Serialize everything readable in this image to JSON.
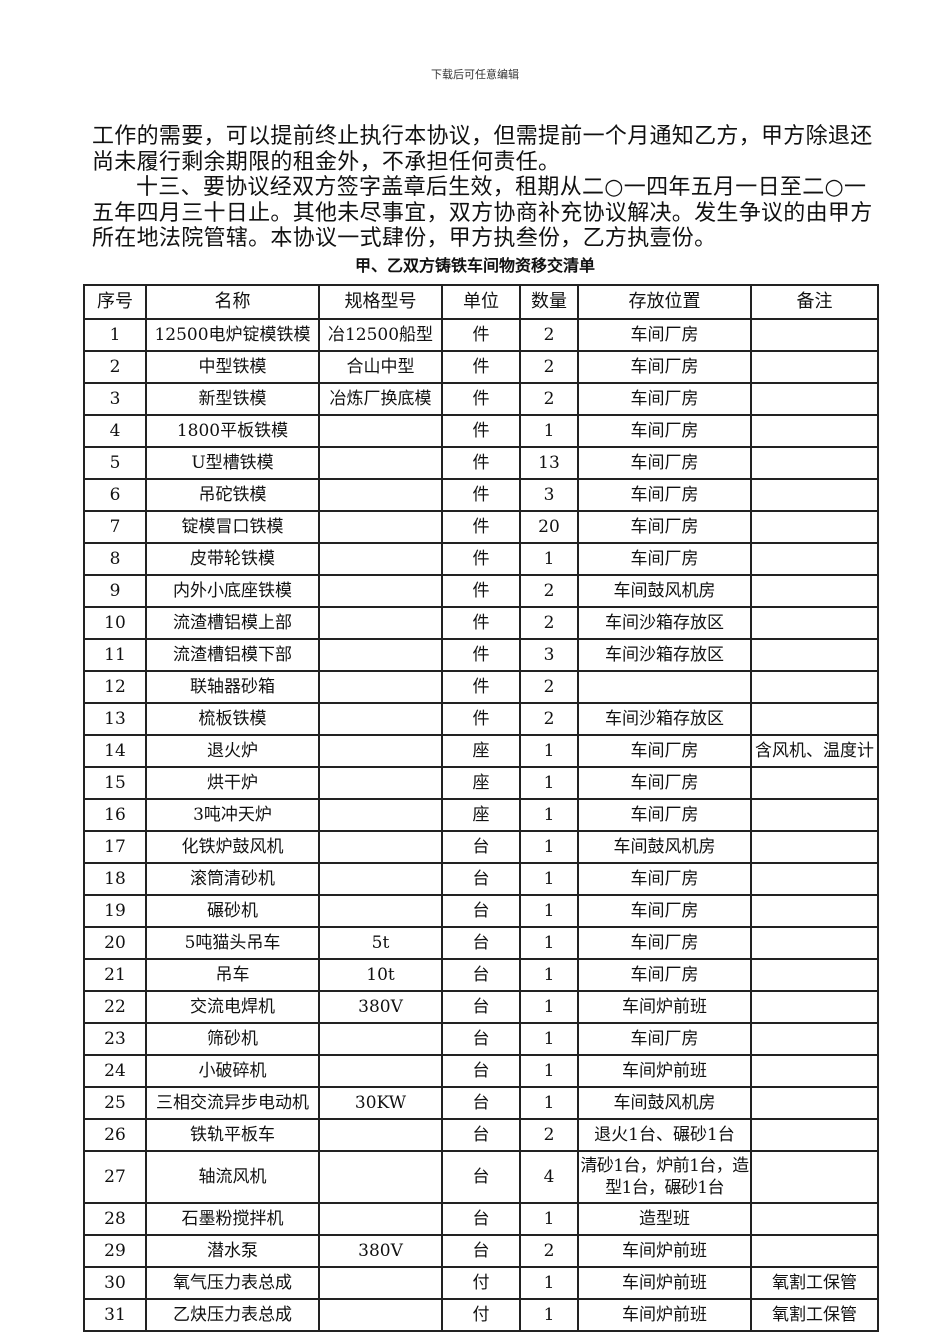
{
  "watermark": "下载后可任意编辑",
  "paragraphs": [
    "工作的需要，可以提前终止执行本协议，但需提前一个月通知乙方，甲方除退还尚未履行剩余期限的租金外，不承担任何责任。",
    "十三、要协议经双方签字盖章后生效，租期从二○一四年五月一日至二○一五年四月三十日止。其他未尽事宜，双方协商补充协议解决。发生争议的由甲方所在地法院管辖。本协议一式肆份，甲方执叁份，乙方执壹份。"
  ],
  "table_title": "甲、乙双方铸铁车间物资移交清单",
  "columns": [
    "序号",
    "名称",
    "规格型号",
    "单位",
    "数量",
    "存放位置",
    "备注"
  ],
  "rows": [
    [
      "1",
      "12500电炉锭模铁模",
      "冶12500船型",
      "件",
      "2",
      "车间厂房",
      ""
    ],
    [
      "2",
      "中型铁模",
      "合山中型",
      "件",
      "2",
      "车间厂房",
      ""
    ],
    [
      "3",
      "新型铁模",
      "冶炼厂换底模",
      "件",
      "2",
      "车间厂房",
      ""
    ],
    [
      "4",
      "1800平板铁模",
      "",
      "件",
      "1",
      "车间厂房",
      ""
    ],
    [
      "5",
      "U型槽铁模",
      "",
      "件",
      "13",
      "车间厂房",
      ""
    ],
    [
      "6",
      "吊砣铁模",
      "",
      "件",
      "3",
      "车间厂房",
      ""
    ],
    [
      "7",
      "锭模冒口铁模",
      "",
      "件",
      "20",
      "车间厂房",
      ""
    ],
    [
      "8",
      "皮带轮铁模",
      "",
      "件",
      "1",
      "车间厂房",
      ""
    ],
    [
      "9",
      "内外小底座铁模",
      "",
      "件",
      "2",
      "车间鼓风机房",
      ""
    ],
    [
      "10",
      "流渣槽铝模上部",
      "",
      "件",
      "2",
      "车间沙箱存放区",
      ""
    ],
    [
      "11",
      "流渣槽铝模下部",
      "",
      "件",
      "3",
      "车间沙箱存放区",
      ""
    ],
    [
      "12",
      "联轴器砂箱",
      "",
      "件",
      "2",
      "",
      ""
    ],
    [
      "13",
      "梳板铁模",
      "",
      "件",
      "2",
      "车间沙箱存放区",
      ""
    ],
    [
      "14",
      "退火炉",
      "",
      "座",
      "1",
      "车间厂房",
      "含风机、温度计"
    ],
    [
      "15",
      "烘干炉",
      "",
      "座",
      "1",
      "车间厂房",
      ""
    ],
    [
      "16",
      "3吨冲天炉",
      "",
      "座",
      "1",
      "车间厂房",
      ""
    ],
    [
      "17",
      "化铁炉鼓风机",
      "",
      "台",
      "1",
      "车间鼓风机房",
      ""
    ],
    [
      "18",
      "滚筒清砂机",
      "",
      "台",
      "1",
      "车间厂房",
      ""
    ],
    [
      "19",
      "碾砂机",
      "",
      "台",
      "1",
      "车间厂房",
      ""
    ],
    [
      "20",
      "5吨猫头吊车",
      "5t",
      "台",
      "1",
      "车间厂房",
      ""
    ],
    [
      "21",
      "吊车",
      "10t",
      "台",
      "1",
      "车间厂房",
      ""
    ],
    [
      "22",
      "交流电焊机",
      "380V",
      "台",
      "1",
      "车间炉前班",
      ""
    ],
    [
      "23",
      "筛砂机",
      "",
      "台",
      "1",
      "车间厂房",
      ""
    ],
    [
      "24",
      "小破碎机",
      "",
      "台",
      "1",
      "车间炉前班",
      ""
    ],
    [
      "25",
      "三相交流异步电动机",
      "30KW",
      "台",
      "1",
      "车间鼓风机房",
      ""
    ],
    [
      "26",
      "铁轨平板车",
      "",
      "台",
      "2",
      "退火1台、碾砂1台",
      ""
    ],
    [
      "27",
      "轴流风机",
      "",
      "台",
      "4",
      "清砂1台，炉前1台，造型1台，碾砂1台",
      ""
    ],
    [
      "28",
      "石墨粉搅拌机",
      "",
      "台",
      "1",
      "造型班",
      ""
    ],
    [
      "29",
      "潜水泵",
      "380V",
      "台",
      "2",
      "车间炉前班",
      ""
    ],
    [
      "30",
      "氧气压力表总成",
      "",
      "付",
      "1",
      "车间炉前班",
      "氧割工保管"
    ],
    [
      "31",
      "乙炔压力表总成",
      "",
      "付",
      "1",
      "车间炉前班",
      "氧割工保管"
    ]
  ]
}
